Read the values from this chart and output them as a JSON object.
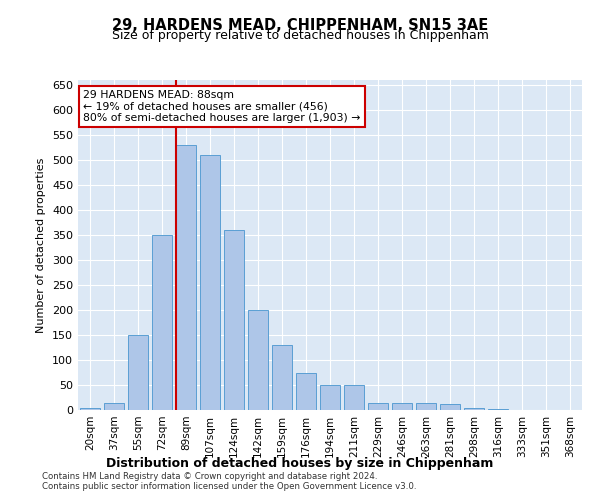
{
  "title": "29, HARDENS MEAD, CHIPPENHAM, SN15 3AE",
  "subtitle": "Size of property relative to detached houses in Chippenham",
  "xlabel": "Distribution of detached houses by size in Chippenham",
  "ylabel": "Number of detached properties",
  "categories": [
    "20sqm",
    "37sqm",
    "55sqm",
    "72sqm",
    "89sqm",
    "107sqm",
    "124sqm",
    "142sqm",
    "159sqm",
    "176sqm",
    "194sqm",
    "211sqm",
    "229sqm",
    "246sqm",
    "263sqm",
    "281sqm",
    "298sqm",
    "316sqm",
    "333sqm",
    "351sqm",
    "368sqm"
  ],
  "values": [
    5,
    15,
    150,
    350,
    530,
    510,
    360,
    200,
    130,
    75,
    50,
    50,
    15,
    15,
    15,
    12,
    5,
    2,
    1,
    1,
    1
  ],
  "bar_color": "#aec6e8",
  "bar_edge_color": "#5a9fd4",
  "vline_index": 4,
  "vline_color": "#cc0000",
  "annotation_text": "29 HARDENS MEAD: 88sqm\n← 19% of detached houses are smaller (456)\n80% of semi-detached houses are larger (1,903) →",
  "annotation_box_color": "#ffffff",
  "annotation_box_edge": "#cc0000",
  "ylim": [
    0,
    660
  ],
  "yticks": [
    0,
    50,
    100,
    150,
    200,
    250,
    300,
    350,
    400,
    450,
    500,
    550,
    600,
    650
  ],
  "background_color": "#dce8f5",
  "footer_line1": "Contains HM Land Registry data © Crown copyright and database right 2024.",
  "footer_line2": "Contains public sector information licensed under the Open Government Licence v3.0."
}
